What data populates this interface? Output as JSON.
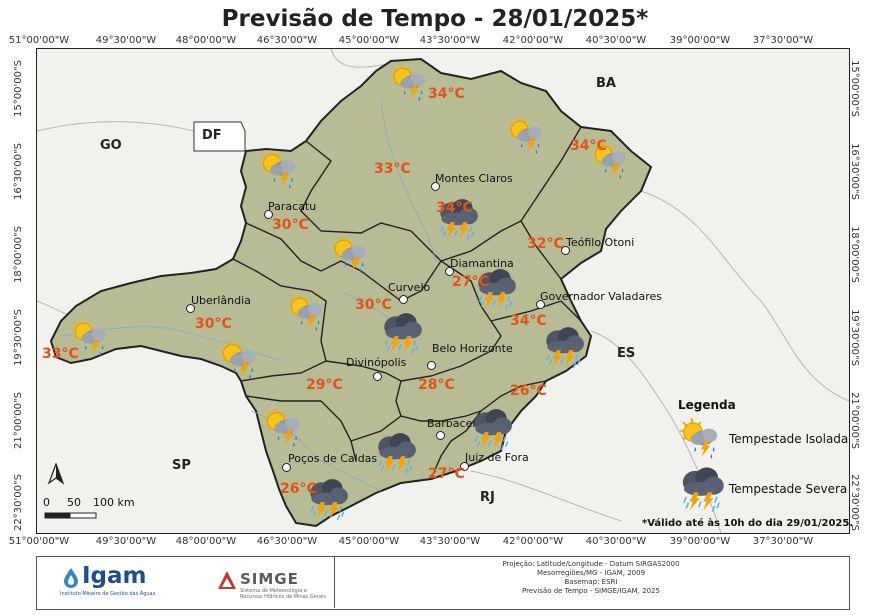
{
  "title": "Previsão de Tempo - 28/01/2025*",
  "graticule": {
    "longitudes": [
      "51°00'00\"W",
      "49°30'00\"W",
      "48°00'00\"W",
      "46°30'00\"W",
      "45°00'00\"W",
      "43°30'00\"W",
      "42°00'00\"W",
      "40°30'00\"W",
      "39°00'00\"W",
      "37°30'00\"W"
    ],
    "latitudes": [
      "15°00'00\"S",
      "16°30'00\"S",
      "18°00'00\"S",
      "19°30'00\"S",
      "21°00'00\"S",
      "22°30'00\"S"
    ]
  },
  "regions": {
    "go": "GO",
    "df": "DF",
    "ba": "BA",
    "es": "ES",
    "sp": "SP",
    "rj": "RJ"
  },
  "cities": {
    "montes_claros": "Montes Claros",
    "paracatu": "Paracatu",
    "teofilo_otoni": "Teófilo Otoni",
    "diamantina": "Diamantina",
    "uberlandia": "Uberlândia",
    "curvelo": "Curvelo",
    "governador_valadares": "Governador Valadares",
    "belo_horizonte": "Belo Horizonte",
    "divinopolis": "Divinópolis",
    "barbacena": "Barbacena",
    "pocos_de_caldas": "Poços de Caldas",
    "juiz_de_fora": "Juiz de Fora"
  },
  "forecast": {
    "norte_1": "34°C",
    "norte_2": "34°C",
    "norte_central": "33°C",
    "montes_claros": "34°C",
    "noroeste": "30°C",
    "jequitinhonha": "32°C",
    "central": "30°C",
    "diamantina": "27°C",
    "triangulo": "30°C",
    "triangulo_oeste": "33°C",
    "rio_doce": "34°C",
    "oeste": "29°C",
    "metropolitana": "28°C",
    "zona_mata": "26°C",
    "campo_vertentes": "27°C",
    "sul": "26°C"
  },
  "legend": {
    "title": "Legenda",
    "isolated": "Tempestade Isolada",
    "severe": "Tempestade Severa"
  },
  "scale": {
    "t0": "0",
    "t1": "50",
    "t2": "100 km"
  },
  "note": "*Válido até às 10h do dia 29/01/2025.",
  "footer": {
    "igam": "Igam",
    "igam_sub": "Instituto Mineiro de Gestão das Águas",
    "simge": "SIMGE",
    "simge_sub": "Sistema de Meteorologia e Recursos Hídricos de Minas Gerais",
    "credits": [
      "Projeção: Latitude/Longitude - Datum SIRGAS2000",
      "Mesorregiões/MG - IGAM, 2009",
      "Basemap: ESRI",
      "Previsão de Tempo - SIMGE/IGAM, 2025"
    ]
  },
  "colors": {
    "temp": "#e0561a",
    "state_fill": "#b8bc94",
    "border": "#222222"
  }
}
